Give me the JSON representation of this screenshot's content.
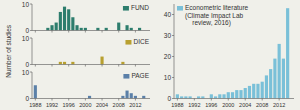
{
  "chart_data": [
    {
      "type": "bar",
      "x": [
        1988,
        1989,
        1990,
        1991,
        1992,
        1993,
        1994,
        1995,
        1996,
        1997,
        1998,
        1999,
        2000,
        2001,
        2002,
        2003,
        2004,
        2005,
        2006,
        2007,
        2008,
        2009,
        2010,
        2011,
        2012,
        2013,
        2014
      ],
      "series": [
        {
          "name": "FUND",
          "color": "#2d7d6d",
          "values": [
            0,
            0,
            0,
            1,
            2,
            3,
            7,
            9,
            8,
            5,
            2,
            1,
            1,
            0,
            0,
            1,
            0,
            1,
            0,
            0,
            3,
            0,
            2,
            1,
            0,
            1,
            0
          ]
        }
      ],
      "xlim": [
        1987.2,
        2015.5
      ],
      "xticks": [
        1988,
        1992,
        1996,
        2000,
        2004,
        2008,
        2012
      ],
      "ylim": [
        0,
        10
      ],
      "yticks": [
        0,
        10
      ],
      "legend": "upper right",
      "tick_labels": "y"
    },
    {
      "type": "bar",
      "ylabel": "Number of studies",
      "x": [
        1988,
        1989,
        1990,
        1991,
        1992,
        1993,
        1994,
        1995,
        1996,
        1997,
        1998,
        1999,
        2000,
        2001,
        2002,
        2003,
        2004,
        2005,
        2006,
        2007,
        2008,
        2009,
        2010,
        2011,
        2012,
        2013,
        2014
      ],
      "series": [
        {
          "name": "DICE",
          "color": "#b8a030",
          "values": [
            0,
            0,
            0,
            0,
            0,
            0,
            1,
            1,
            0,
            1,
            0,
            0,
            0,
            0,
            0,
            0,
            3,
            0,
            0,
            0,
            0,
            1,
            0,
            0,
            0,
            0,
            0
          ]
        }
      ],
      "xlim": [
        1987.2,
        2015.5
      ],
      "xticks": [
        1988,
        1992,
        1996,
        2000,
        2004,
        2008,
        2012
      ],
      "ylim": [
        0,
        10
      ],
      "yticks": [
        0,
        10
      ],
      "legend": "upper right",
      "tick_labels": "y"
    },
    {
      "type": "bar",
      "x": [
        1988,
        1989,
        1990,
        1991,
        1992,
        1993,
        1994,
        1995,
        1996,
        1997,
        1998,
        1999,
        2000,
        2001,
        2002,
        2003,
        2004,
        2005,
        2006,
        2007,
        2008,
        2009,
        2010,
        2011,
        2012,
        2013,
        2014
      ],
      "series": [
        {
          "name": "PAGE",
          "color": "#5b80a8",
          "values": [
            5,
            0,
            0,
            0,
            0,
            0,
            0,
            0,
            0,
            0,
            0,
            0,
            0,
            1,
            0,
            0,
            0,
            0,
            0,
            0,
            0,
            1,
            3,
            2,
            1,
            0,
            1
          ]
        }
      ],
      "xlim": [
        1987.2,
        2015.5
      ],
      "xticks": [
        1988,
        1992,
        1996,
        2000,
        2004,
        2008,
        2012
      ],
      "ylim": [
        0,
        10
      ],
      "yticks": [
        0,
        10
      ],
      "legend": "upper right"
    },
    {
      "type": "bar",
      "x": [
        1988,
        1989,
        1990,
        1991,
        1992,
        1993,
        1994,
        1995,
        1996,
        1997,
        1998,
        1999,
        2000,
        2001,
        2002,
        2003,
        2004,
        2005,
        2006,
        2007,
        2008,
        2009,
        2010,
        2011,
        2012,
        2013,
        2014
      ],
      "series": [
        {
          "name": "Econometric literature\n(Climate Impact Lab\n    review, 2016)",
          "color": "#7ac0d8",
          "values": [
            2,
            1,
            1,
            1,
            0,
            1,
            1,
            0,
            2,
            1,
            2,
            2,
            3,
            3,
            4,
            4,
            5,
            6,
            7,
            7,
            8,
            11,
            14,
            19,
            26,
            19,
            43
          ]
        }
      ],
      "xlim": [
        1987.2,
        2015.5
      ],
      "xticks": [
        1988,
        1992,
        1996,
        2000,
        2004,
        2008,
        2012
      ],
      "ylim": [
        0,
        45
      ],
      "yticks": [
        0,
        10,
        20,
        30,
        40
      ],
      "legend": "upper left"
    }
  ]
}
